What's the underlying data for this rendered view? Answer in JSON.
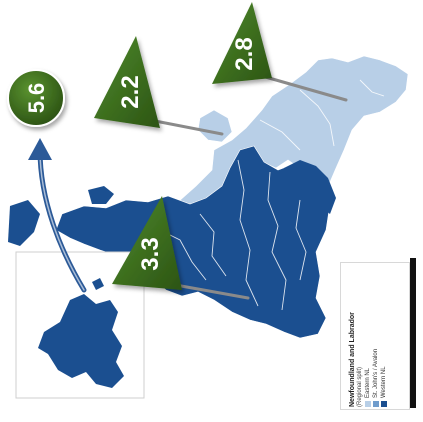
{
  "map": {
    "colors": {
      "eastern": "#b8cfe7",
      "western": "#1b4f90",
      "flag": "#3e6e1f",
      "flag_dark": "#244512",
      "pin": "#8a8a8a",
      "arrow": "#2c5a98"
    },
    "markers": [
      {
        "id": "circle",
        "value": "5.6"
      },
      {
        "id": "north-flag",
        "value": "2.8"
      },
      {
        "id": "mid-flag",
        "value": "2.2"
      },
      {
        "id": "south-flag",
        "value": "3.3"
      }
    ],
    "legend": {
      "title": "Newfoundland and Labrador",
      "subtitle": "(Regional split)",
      "items": [
        {
          "label": "Eastern NL",
          "color": "#b8cfe7"
        },
        {
          "label": "St. John's / Avalon",
          "color": "#6f9ccc"
        },
        {
          "label": "Western NL",
          "color": "#1b4f90"
        }
      ]
    }
  }
}
